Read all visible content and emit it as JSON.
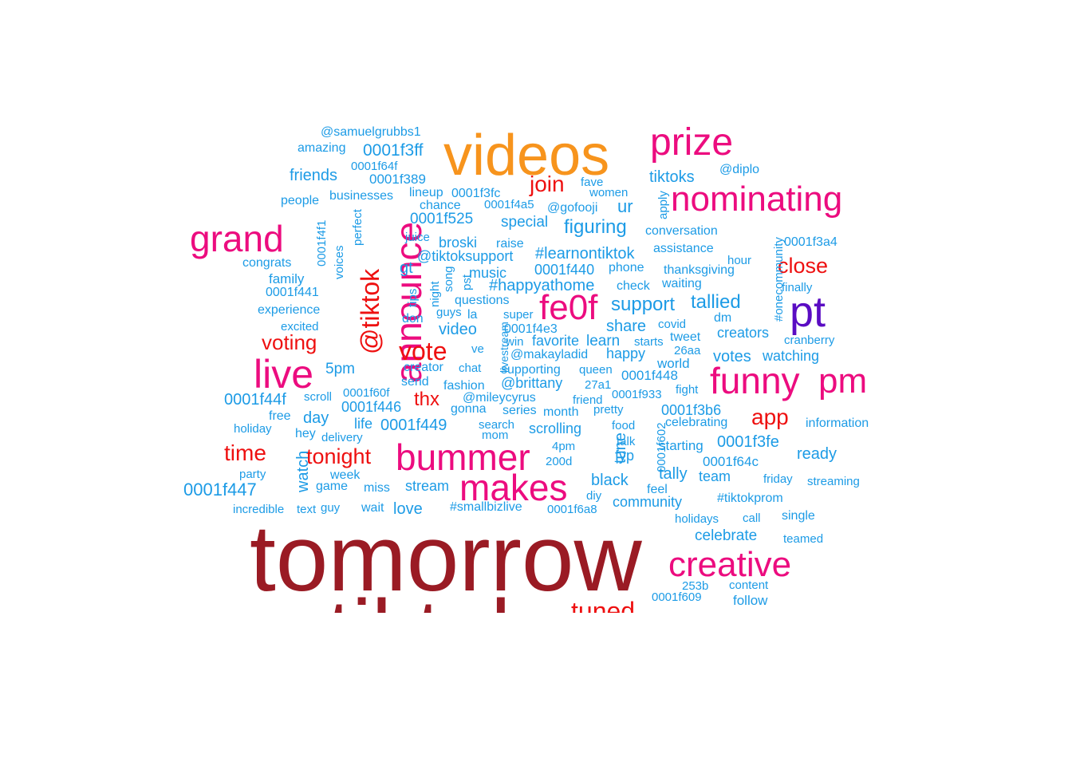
{
  "palette": {
    "dark_red": "#9a1b24",
    "orange": "#f7941d",
    "magenta": "#ec0c7f",
    "purple": "#5a0cc3",
    "red": "#ee1010",
    "blue": "#1c9be6"
  },
  "words": [
    {
      "text": "tomorrow",
      "color": "dark_red",
      "weight": 100
    },
    {
      "text": "tiktok",
      "color": "dark_red",
      "weight": 90
    },
    {
      "text": "videos",
      "color": "orange",
      "weight": 70
    },
    {
      "text": "prize",
      "color": "magenta",
      "weight": 48
    },
    {
      "text": "nominating",
      "color": "magenta",
      "weight": 45
    },
    {
      "text": "grand",
      "color": "magenta",
      "weight": 46
    },
    {
      "text": "announce",
      "color": "magenta",
      "weight": 46
    },
    {
      "text": "pt",
      "color": "purple",
      "weight": 54
    },
    {
      "text": "live",
      "color": "magenta",
      "weight": 48
    },
    {
      "text": "funny",
      "color": "magenta",
      "weight": 46
    },
    {
      "text": "pm",
      "color": "magenta",
      "weight": 46
    },
    {
      "text": "fe0f",
      "color": "magenta",
      "weight": 44
    },
    {
      "text": "bummer",
      "color": "magenta",
      "weight": 44
    },
    {
      "text": "makes",
      "color": "magenta",
      "weight": 44
    },
    {
      "text": "creative",
      "color": "magenta",
      "weight": 44
    },
    {
      "text": "@tiktok",
      "color": "red",
      "weight": 34
    },
    {
      "text": "vote",
      "color": "red",
      "weight": 34
    },
    {
      "text": "join",
      "color": "red",
      "weight": 28
    },
    {
      "text": "close",
      "color": "red",
      "weight": 28
    },
    {
      "text": "voting",
      "color": "red",
      "weight": 26
    },
    {
      "text": "app",
      "color": "red",
      "weight": 28
    },
    {
      "text": "time",
      "color": "red",
      "weight": 28
    },
    {
      "text": "tonight",
      "color": "red",
      "weight": 28
    },
    {
      "text": "thx",
      "color": "red",
      "weight": 24
    },
    {
      "text": "tuned",
      "color": "red",
      "weight": 30
    },
    {
      "text": "@samuelgrubbs1",
      "color": "blue",
      "weight": 16
    },
    {
      "text": "amazing",
      "color": "blue",
      "weight": 16
    },
    {
      "text": "0001f3ff",
      "color": "blue",
      "weight": 20
    },
    {
      "text": "0001f64f",
      "color": "blue",
      "weight": 15
    },
    {
      "text": "0001f389",
      "color": "blue",
      "weight": 17
    },
    {
      "text": "friends",
      "color": "blue",
      "weight": 20
    },
    {
      "text": "tiktoks",
      "color": "blue",
      "weight": 20
    },
    {
      "text": "@diplo",
      "color": "blue",
      "weight": 16
    },
    {
      "text": "fave",
      "color": "blue",
      "weight": 15
    },
    {
      "text": "women",
      "color": "blue",
      "weight": 15
    },
    {
      "text": "apply",
      "color": "blue",
      "weight": 15
    },
    {
      "text": "people",
      "color": "blue",
      "weight": 16
    },
    {
      "text": "businesses",
      "color": "blue",
      "weight": 16
    },
    {
      "text": "lineup",
      "color": "blue",
      "weight": 16
    },
    {
      "text": "0001f3fc",
      "color": "blue",
      "weight": 16
    },
    {
      "text": "chance",
      "color": "blue",
      "weight": 16
    },
    {
      "text": "0001f4a5",
      "color": "blue",
      "weight": 15
    },
    {
      "text": "@gofooji",
      "color": "blue",
      "weight": 16
    },
    {
      "text": "ur",
      "color": "blue",
      "weight": 22
    },
    {
      "text": "0001f525",
      "color": "blue",
      "weight": 19
    },
    {
      "text": "special",
      "color": "blue",
      "weight": 19
    },
    {
      "text": "figuring",
      "color": "blue",
      "weight": 24
    },
    {
      "text": "conversation",
      "color": "blue",
      "weight": 16
    },
    {
      "text": "0001f3a4",
      "color": "blue",
      "weight": 16
    },
    {
      "text": "juice",
      "color": "blue",
      "weight": 15
    },
    {
      "text": "broski",
      "color": "blue",
      "weight": 18
    },
    {
      "text": "raise",
      "color": "blue",
      "weight": 16
    },
    {
      "text": "assistance",
      "color": "blue",
      "weight": 16
    },
    {
      "text": "#onecommunity",
      "color": "blue",
      "weight": 15
    },
    {
      "text": "0001f4f1",
      "color": "blue",
      "weight": 15
    },
    {
      "text": "perfect",
      "color": "blue",
      "weight": 15
    },
    {
      "text": "voices",
      "color": "blue",
      "weight": 15
    },
    {
      "text": "congrats",
      "color": "blue",
      "weight": 16
    },
    {
      "text": "gt",
      "color": "blue",
      "weight": 20
    },
    {
      "text": "@tiktoksupport",
      "color": "blue",
      "weight": 18
    },
    {
      "text": "#learnontiktok",
      "color": "blue",
      "weight": 20
    },
    {
      "text": "hour",
      "color": "blue",
      "weight": 15
    },
    {
      "text": "family",
      "color": "blue",
      "weight": 17
    },
    {
      "text": "0001f440",
      "color": "blue",
      "weight": 18
    },
    {
      "text": "phone",
      "color": "blue",
      "weight": 16
    },
    {
      "text": "thanksgiving",
      "color": "blue",
      "weight": 16
    },
    {
      "text": "finally",
      "color": "blue",
      "weight": 15
    },
    {
      "text": "0001f441",
      "color": "blue",
      "weight": 16
    },
    {
      "text": "tips",
      "color": "blue",
      "weight": 15
    },
    {
      "text": "night",
      "color": "blue",
      "weight": 15
    },
    {
      "text": "song",
      "color": "blue",
      "weight": 15
    },
    {
      "text": "pst",
      "color": "blue",
      "weight": 15
    },
    {
      "text": "music",
      "color": "blue",
      "weight": 18
    },
    {
      "text": "#happyathome",
      "color": "blue",
      "weight": 20
    },
    {
      "text": "check",
      "color": "blue",
      "weight": 16
    },
    {
      "text": "waiting",
      "color": "blue",
      "weight": 16
    },
    {
      "text": "experience",
      "color": "blue",
      "weight": 16
    },
    {
      "text": "questions",
      "color": "blue",
      "weight": 16
    },
    {
      "text": "support",
      "color": "blue",
      "weight": 24
    },
    {
      "text": "tallied",
      "color": "blue",
      "weight": 24
    },
    {
      "text": "guys",
      "color": "blue",
      "weight": 15
    },
    {
      "text": "la",
      "color": "blue",
      "weight": 16
    },
    {
      "text": "super",
      "color": "blue",
      "weight": 15
    },
    {
      "text": "don",
      "color": "blue",
      "weight": 16
    },
    {
      "text": "dm",
      "color": "blue",
      "weight": 16
    },
    {
      "text": "excited",
      "color": "blue",
      "weight": 15
    },
    {
      "text": "video",
      "color": "blue",
      "weight": 20
    },
    {
      "text": "livestream",
      "color": "blue",
      "weight": 14
    },
    {
      "text": "0001f4e3",
      "color": "blue",
      "weight": 16
    },
    {
      "text": "share",
      "color": "blue",
      "weight": 20
    },
    {
      "text": "covid",
      "color": "blue",
      "weight": 15
    },
    {
      "text": "creators",
      "color": "blue",
      "weight": 18
    },
    {
      "text": "win",
      "color": "blue",
      "weight": 15
    },
    {
      "text": "favorite",
      "color": "blue",
      "weight": 18
    },
    {
      "text": "learn",
      "color": "blue",
      "weight": 19
    },
    {
      "text": "starts",
      "color": "blue",
      "weight": 15
    },
    {
      "text": "tweet",
      "color": "blue",
      "weight": 16
    },
    {
      "text": "cranberry",
      "color": "blue",
      "weight": 15
    },
    {
      "text": "ve",
      "color": "blue",
      "weight": 15
    },
    {
      "text": "@makayladid",
      "color": "blue",
      "weight": 16
    },
    {
      "text": "happy",
      "color": "blue",
      "weight": 18
    },
    {
      "text": "26aa",
      "color": "blue",
      "weight": 15
    },
    {
      "text": "votes",
      "color": "blue",
      "weight": 20
    },
    {
      "text": "watching",
      "color": "blue",
      "weight": 18
    },
    {
      "text": "5pm",
      "color": "blue",
      "weight": 19
    },
    {
      "text": "creator",
      "color": "blue",
      "weight": 16
    },
    {
      "text": "chat",
      "color": "blue",
      "weight": 15
    },
    {
      "text": "supporting",
      "color": "blue",
      "weight": 16
    },
    {
      "text": "queen",
      "color": "blue",
      "weight": 15
    },
    {
      "text": "world",
      "color": "blue",
      "weight": 17
    },
    {
      "text": "send",
      "color": "blue",
      "weight": 16
    },
    {
      "text": "0001f448",
      "color": "blue",
      "weight": 17
    },
    {
      "text": "@brittany",
      "color": "blue",
      "weight": 18
    },
    {
      "text": "fashion",
      "color": "blue",
      "weight": 16
    },
    {
      "text": "27a1",
      "color": "blue",
      "weight": 15
    },
    {
      "text": "fight",
      "color": "blue",
      "weight": 15
    },
    {
      "text": "0001f44f",
      "color": "blue",
      "weight": 20
    },
    {
      "text": "scroll",
      "color": "blue",
      "weight": 15
    },
    {
      "text": "0001f60f",
      "color": "blue",
      "weight": 15
    },
    {
      "text": "@mileycyrus",
      "color": "blue",
      "weight": 16
    },
    {
      "text": "friend",
      "color": "blue",
      "weight": 15
    },
    {
      "text": "0001f933",
      "color": "blue",
      "weight": 15
    },
    {
      "text": "0001f446",
      "color": "blue",
      "weight": 18
    },
    {
      "text": "gonna",
      "color": "blue",
      "weight": 16
    },
    {
      "text": "series",
      "color": "blue",
      "weight": 16
    },
    {
      "text": "pretty",
      "color": "blue",
      "weight": 15
    },
    {
      "text": "0001f3b6",
      "color": "blue",
      "weight": 18
    },
    {
      "text": "free",
      "color": "blue",
      "weight": 16
    },
    {
      "text": "day",
      "color": "blue",
      "weight": 20
    },
    {
      "text": "month",
      "color": "blue",
      "weight": 16
    },
    {
      "text": "information",
      "color": "blue",
      "weight": 16
    },
    {
      "text": "holiday",
      "color": "blue",
      "weight": 15
    },
    {
      "text": "life",
      "color": "blue",
      "weight": 18
    },
    {
      "text": "0001f449",
      "color": "blue",
      "weight": 20
    },
    {
      "text": "search",
      "color": "blue",
      "weight": 15
    },
    {
      "text": "food",
      "color": "blue",
      "weight": 15
    },
    {
      "text": "celebrating",
      "color": "blue",
      "weight": 16
    },
    {
      "text": "hey",
      "color": "blue",
      "weight": 16
    },
    {
      "text": "delivery",
      "color": "blue",
      "weight": 15
    },
    {
      "text": "mom",
      "color": "blue",
      "weight": 15
    },
    {
      "text": "scrolling",
      "color": "blue",
      "weight": 18
    },
    {
      "text": "talk",
      "color": "blue",
      "weight": 15
    },
    {
      "text": "starting",
      "color": "blue",
      "weight": 17
    },
    {
      "text": "0001f3fe",
      "color": "blue",
      "weight": 20
    },
    {
      "text": "4pm",
      "color": "blue",
      "weight": 15
    },
    {
      "text": "tune",
      "color": "blue",
      "weight": 20
    },
    {
      "text": "0001f602",
      "color": "blue",
      "weight": 15
    },
    {
      "text": "fyp",
      "color": "blue",
      "weight": 18
    },
    {
      "text": "0001f64c",
      "color": "blue",
      "weight": 17
    },
    {
      "text": "ready",
      "color": "blue",
      "weight": 20
    },
    {
      "text": "watch",
      "color": "blue",
      "weight": 20
    },
    {
      "text": "200d",
      "color": "blue",
      "weight": 15
    },
    {
      "text": "party",
      "color": "blue",
      "weight": 15
    },
    {
      "text": "week",
      "color": "blue",
      "weight": 16
    },
    {
      "text": "tally",
      "color": "blue",
      "weight": 20
    },
    {
      "text": "team",
      "color": "blue",
      "weight": 18
    },
    {
      "text": "friday",
      "color": "blue",
      "weight": 15
    },
    {
      "text": "streaming",
      "color": "blue",
      "weight": 15
    },
    {
      "text": "0001f447",
      "color": "blue",
      "weight": 22
    },
    {
      "text": "game",
      "color": "blue",
      "weight": 16
    },
    {
      "text": "miss",
      "color": "blue",
      "weight": 16
    },
    {
      "text": "stream",
      "color": "blue",
      "weight": 18
    },
    {
      "text": "black",
      "color": "blue",
      "weight": 20
    },
    {
      "text": "diy",
      "color": "blue",
      "weight": 15
    },
    {
      "text": "feel",
      "color": "blue",
      "weight": 16
    },
    {
      "text": "#tiktokprom",
      "color": "blue",
      "weight": 16
    },
    {
      "text": "incredible",
      "color": "blue",
      "weight": 15
    },
    {
      "text": "text",
      "color": "blue",
      "weight": 15
    },
    {
      "text": "guy",
      "color": "blue",
      "weight": 15
    },
    {
      "text": "wait",
      "color": "blue",
      "weight": 16
    },
    {
      "text": "love",
      "color": "blue",
      "weight": 20
    },
    {
      "text": "#smallbizlive",
      "color": "blue",
      "weight": 16
    },
    {
      "text": "0001f6a8",
      "color": "blue",
      "weight": 15
    },
    {
      "text": "community",
      "color": "blue",
      "weight": 18
    },
    {
      "text": "single",
      "color": "blue",
      "weight": 16
    },
    {
      "text": "holidays",
      "color": "blue",
      "weight": 15
    },
    {
      "text": "call",
      "color": "blue",
      "weight": 15
    },
    {
      "text": "celebrate",
      "color": "blue",
      "weight": 19
    },
    {
      "text": "teamed",
      "color": "blue",
      "weight": 15
    },
    {
      "text": "253b",
      "color": "blue",
      "weight": 15
    },
    {
      "text": "content",
      "color": "blue",
      "weight": 15
    },
    {
      "text": "0001f609",
      "color": "blue",
      "weight": 15
    },
    {
      "text": "follow",
      "color": "blue",
      "weight": 17
    }
  ]
}
